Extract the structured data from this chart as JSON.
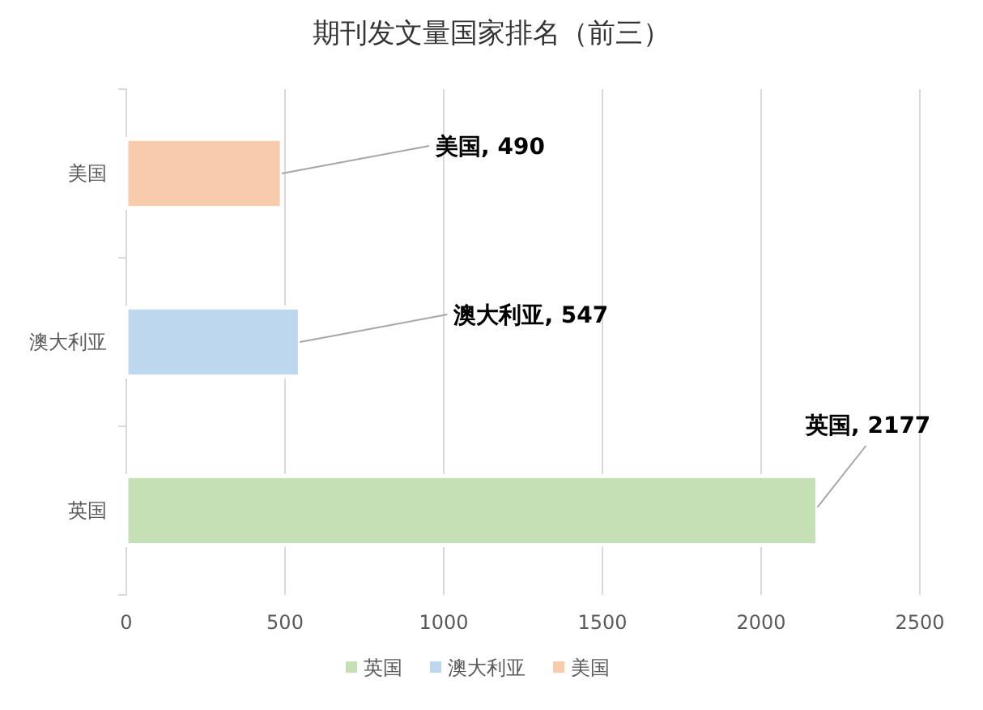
{
  "chart_data": {
    "type": "bar",
    "orientation": "horizontal",
    "title": "期刊发文量国家排名（前三）",
    "categories": [
      "美国",
      "澳大利亚",
      "英国"
    ],
    "series": [
      {
        "name": "英国",
        "color": "#c5e0b4",
        "values": [
          null,
          null,
          2177
        ],
        "value_labels": [
          null,
          null,
          "英国, 2177"
        ]
      },
      {
        "name": "澳大利亚",
        "color": "#bdd7ee",
        "values": [
          null,
          547,
          null
        ],
        "value_labels": [
          null,
          "澳大利亚, 547",
          null
        ]
      },
      {
        "name": "美国",
        "color": "#f8cbad",
        "values": [
          490,
          null,
          null
        ],
        "value_labels": [
          "美国, 490",
          null,
          null
        ]
      }
    ],
    "xlim": [
      0,
      2500
    ],
    "xticks": [
      0,
      500,
      1000,
      1500,
      2000,
      2500
    ],
    "grid": "x",
    "legend": "bottom"
  }
}
